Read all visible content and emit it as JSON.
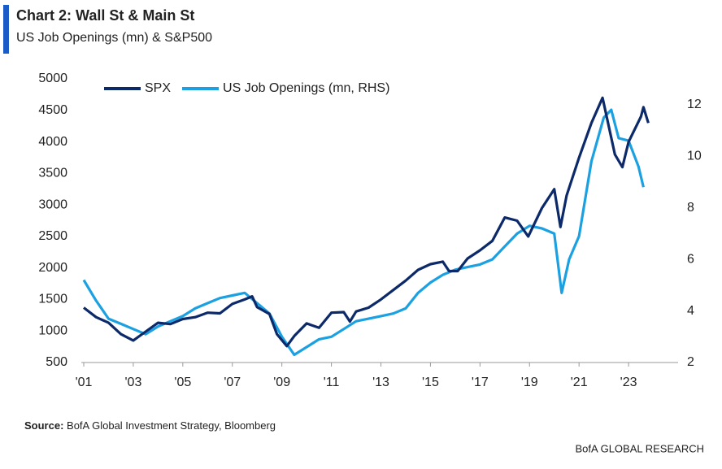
{
  "chart_data": {
    "type": "line",
    "title": "Chart 2: Wall St & Main St",
    "subtitle": "US Job Openings (mn) & S&P500",
    "source_label": "Source:",
    "source": "BofA Global Investment Strategy, Bloomberg",
    "footer": "BofA GLOBAL RESEARCH",
    "xlim": [
      2001,
      2025
    ],
    "xticks": [
      {
        "value": 2001,
        "label": "'01"
      },
      {
        "value": 2003,
        "label": "'03"
      },
      {
        "value": 2005,
        "label": "'05"
      },
      {
        "value": 2007,
        "label": "'07"
      },
      {
        "value": 2009,
        "label": "'09"
      },
      {
        "value": 2011,
        "label": "'11"
      },
      {
        "value": 2013,
        "label": "'13"
      },
      {
        "value": 2015,
        "label": "'15"
      },
      {
        "value": 2017,
        "label": "'17"
      },
      {
        "value": 2019,
        "label": "'19"
      },
      {
        "value": 2021,
        "label": "'21"
      },
      {
        "value": 2023,
        "label": "'23"
      }
    ],
    "ylim": [
      500,
      5000
    ],
    "yticks": [
      500,
      1000,
      1500,
      2000,
      2500,
      3000,
      3500,
      4000,
      4500,
      5000
    ],
    "y2lim": [
      2,
      13
    ],
    "y2ticks": [
      2,
      4,
      6,
      8,
      10,
      12
    ],
    "legend": "top-left",
    "series": [
      {
        "name": "SPX",
        "color": "#0c2a6a",
        "x": [
          2001.0,
          2001.5,
          2002.0,
          2002.5,
          2003.0,
          2003.5,
          2004.0,
          2004.5,
          2005.0,
          2005.5,
          2006.0,
          2006.5,
          2007.0,
          2007.5,
          2007.8,
          2008.0,
          2008.5,
          2008.8,
          2009.2,
          2009.5,
          2010.0,
          2010.5,
          2011.0,
          2011.5,
          2011.75,
          2012.0,
          2012.5,
          2013.0,
          2013.5,
          2014.0,
          2014.5,
          2015.0,
          2015.5,
          2015.75,
          2016.1,
          2016.5,
          2017.0,
          2017.5,
          2018.0,
          2018.5,
          2018.95,
          2019.5,
          2020.0,
          2020.25,
          2020.5,
          2021.0,
          2021.5,
          2021.95,
          2022.45,
          2022.75,
          2023.0,
          2023.5,
          2023.6,
          2023.8
        ],
        "values": [
          1370,
          1220,
          1130,
          950,
          850,
          990,
          1130,
          1110,
          1190,
          1220,
          1290,
          1280,
          1430,
          1500,
          1550,
          1380,
          1270,
          950,
          760,
          920,
          1120,
          1050,
          1290,
          1300,
          1150,
          1310,
          1370,
          1500,
          1650,
          1800,
          1970,
          2060,
          2100,
          1950,
          1950,
          2150,
          2280,
          2430,
          2800,
          2750,
          2500,
          2950,
          3250,
          2650,
          3150,
          3750,
          4300,
          4700,
          3800,
          3600,
          4000,
          4400,
          4550,
          4300
        ]
      },
      {
        "name": "US Job Openings (mn, RHS)",
        "color": "#1ba1e2",
        "axis": "y2",
        "x": [
          2001.0,
          2001.5,
          2002.0,
          2002.5,
          2003.0,
          2003.5,
          2004.0,
          2004.5,
          2005.0,
          2005.5,
          2006.0,
          2006.5,
          2007.0,
          2007.5,
          2008.0,
          2008.5,
          2009.0,
          2009.5,
          2010.0,
          2010.5,
          2011.0,
          2011.5,
          2012.0,
          2012.5,
          2013.0,
          2013.5,
          2014.0,
          2014.5,
          2015.0,
          2015.5,
          2016.0,
          2016.5,
          2017.0,
          2017.5,
          2018.0,
          2018.5,
          2019.0,
          2019.5,
          2020.0,
          2020.3,
          2020.6,
          2021.0,
          2021.5,
          2022.0,
          2022.3,
          2022.6,
          2023.0,
          2023.4,
          2023.6
        ],
        "values": [
          5.2,
          4.4,
          3.7,
          3.5,
          3.3,
          3.1,
          3.4,
          3.6,
          3.8,
          4.1,
          4.3,
          4.5,
          4.6,
          4.7,
          4.3,
          3.9,
          3.0,
          2.3,
          2.6,
          2.9,
          3.0,
          3.3,
          3.6,
          3.7,
          3.8,
          3.9,
          4.1,
          4.7,
          5.1,
          5.4,
          5.6,
          5.7,
          5.8,
          6.0,
          6.5,
          7.0,
          7.3,
          7.2,
          7.0,
          4.7,
          6.0,
          6.9,
          9.8,
          11.5,
          11.8,
          10.7,
          10.6,
          9.6,
          8.8
        ]
      }
    ]
  }
}
